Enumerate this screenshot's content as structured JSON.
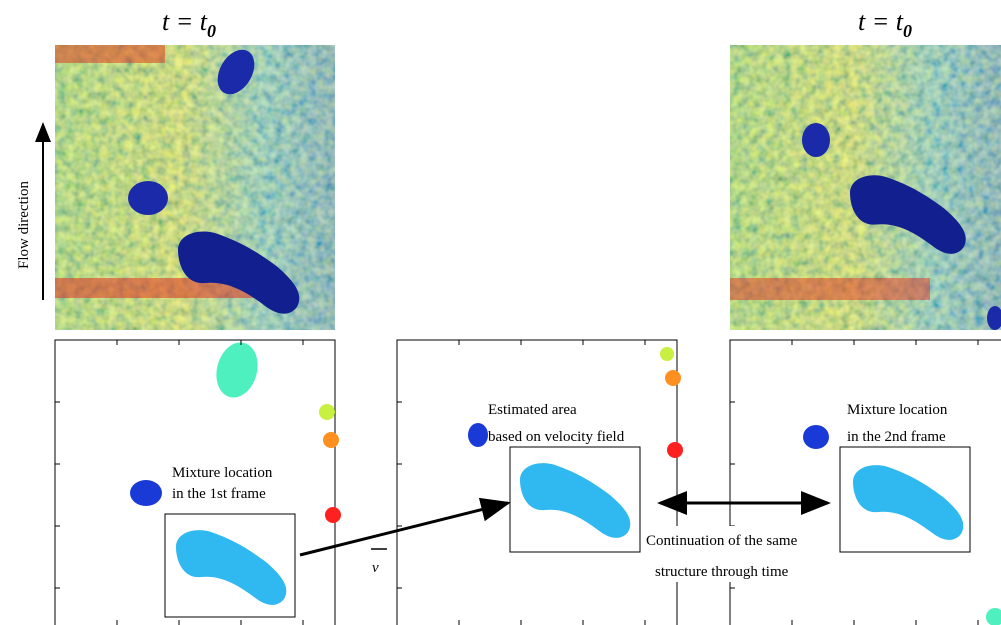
{
  "titles": [
    {
      "text": "t = t",
      "subscript": "0"
    },
    {
      "text": "t = t",
      "subscript": "0"
    }
  ],
  "axis_label": "Flow direction",
  "velocity_label": "v",
  "annotations": {
    "first": [
      "Mixture location",
      "in the 1st frame"
    ],
    "estimated": [
      "Estimated area",
      "based on velocity field"
    ],
    "second": [
      "Mixture location",
      "in the 2nd frame"
    ],
    "continuation": [
      "Continuation of the same",
      "structure through time"
    ]
  }
}
